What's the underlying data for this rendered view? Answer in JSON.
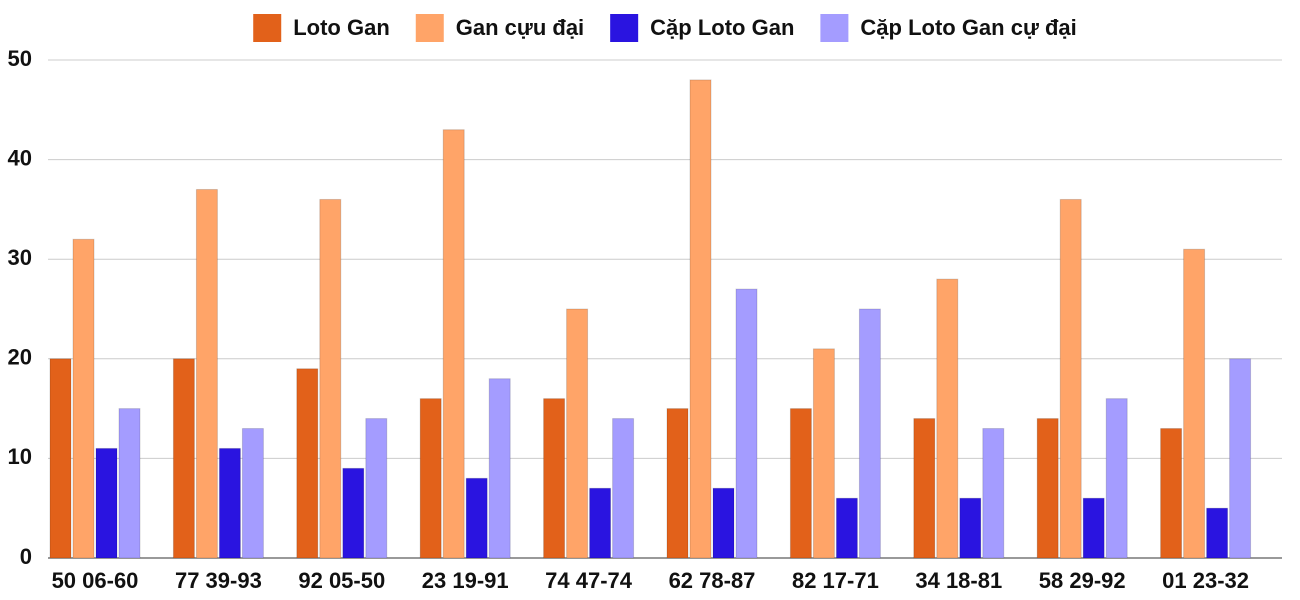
{
  "chart_data": {
    "type": "bar",
    "categories": [
      "50 06-60",
      "77 39-93",
      "92 05-50",
      "23 19-91",
      "74 47-74",
      "62 78-87",
      "82 17-71",
      "34 18-81",
      "58 29-92",
      "01 23-32"
    ],
    "series": [
      {
        "name": "Loto Gan",
        "color": "#e2611a",
        "values": [
          20,
          20,
          19,
          16,
          16,
          15,
          15,
          14,
          14,
          13
        ]
      },
      {
        "name": "Gan cựu đại",
        "color": "#ffa468",
        "values": [
          32,
          37,
          36,
          43,
          25,
          48,
          21,
          28,
          36,
          31
        ]
      },
      {
        "name": "Cặp Loto Gan",
        "color": "#2a14e0",
        "values": [
          11,
          11,
          9,
          8,
          7,
          7,
          6,
          6,
          6,
          5
        ]
      },
      {
        "name": "Cặp Loto Gan cự đại",
        "color": "#a49cff",
        "values": [
          15,
          13,
          14,
          18,
          14,
          27,
          25,
          13,
          16,
          20
        ]
      }
    ],
    "ylim": [
      0,
      50
    ],
    "yticks": [
      0,
      10,
      20,
      30,
      40,
      50
    ],
    "grid": true,
    "legend": "top"
  }
}
